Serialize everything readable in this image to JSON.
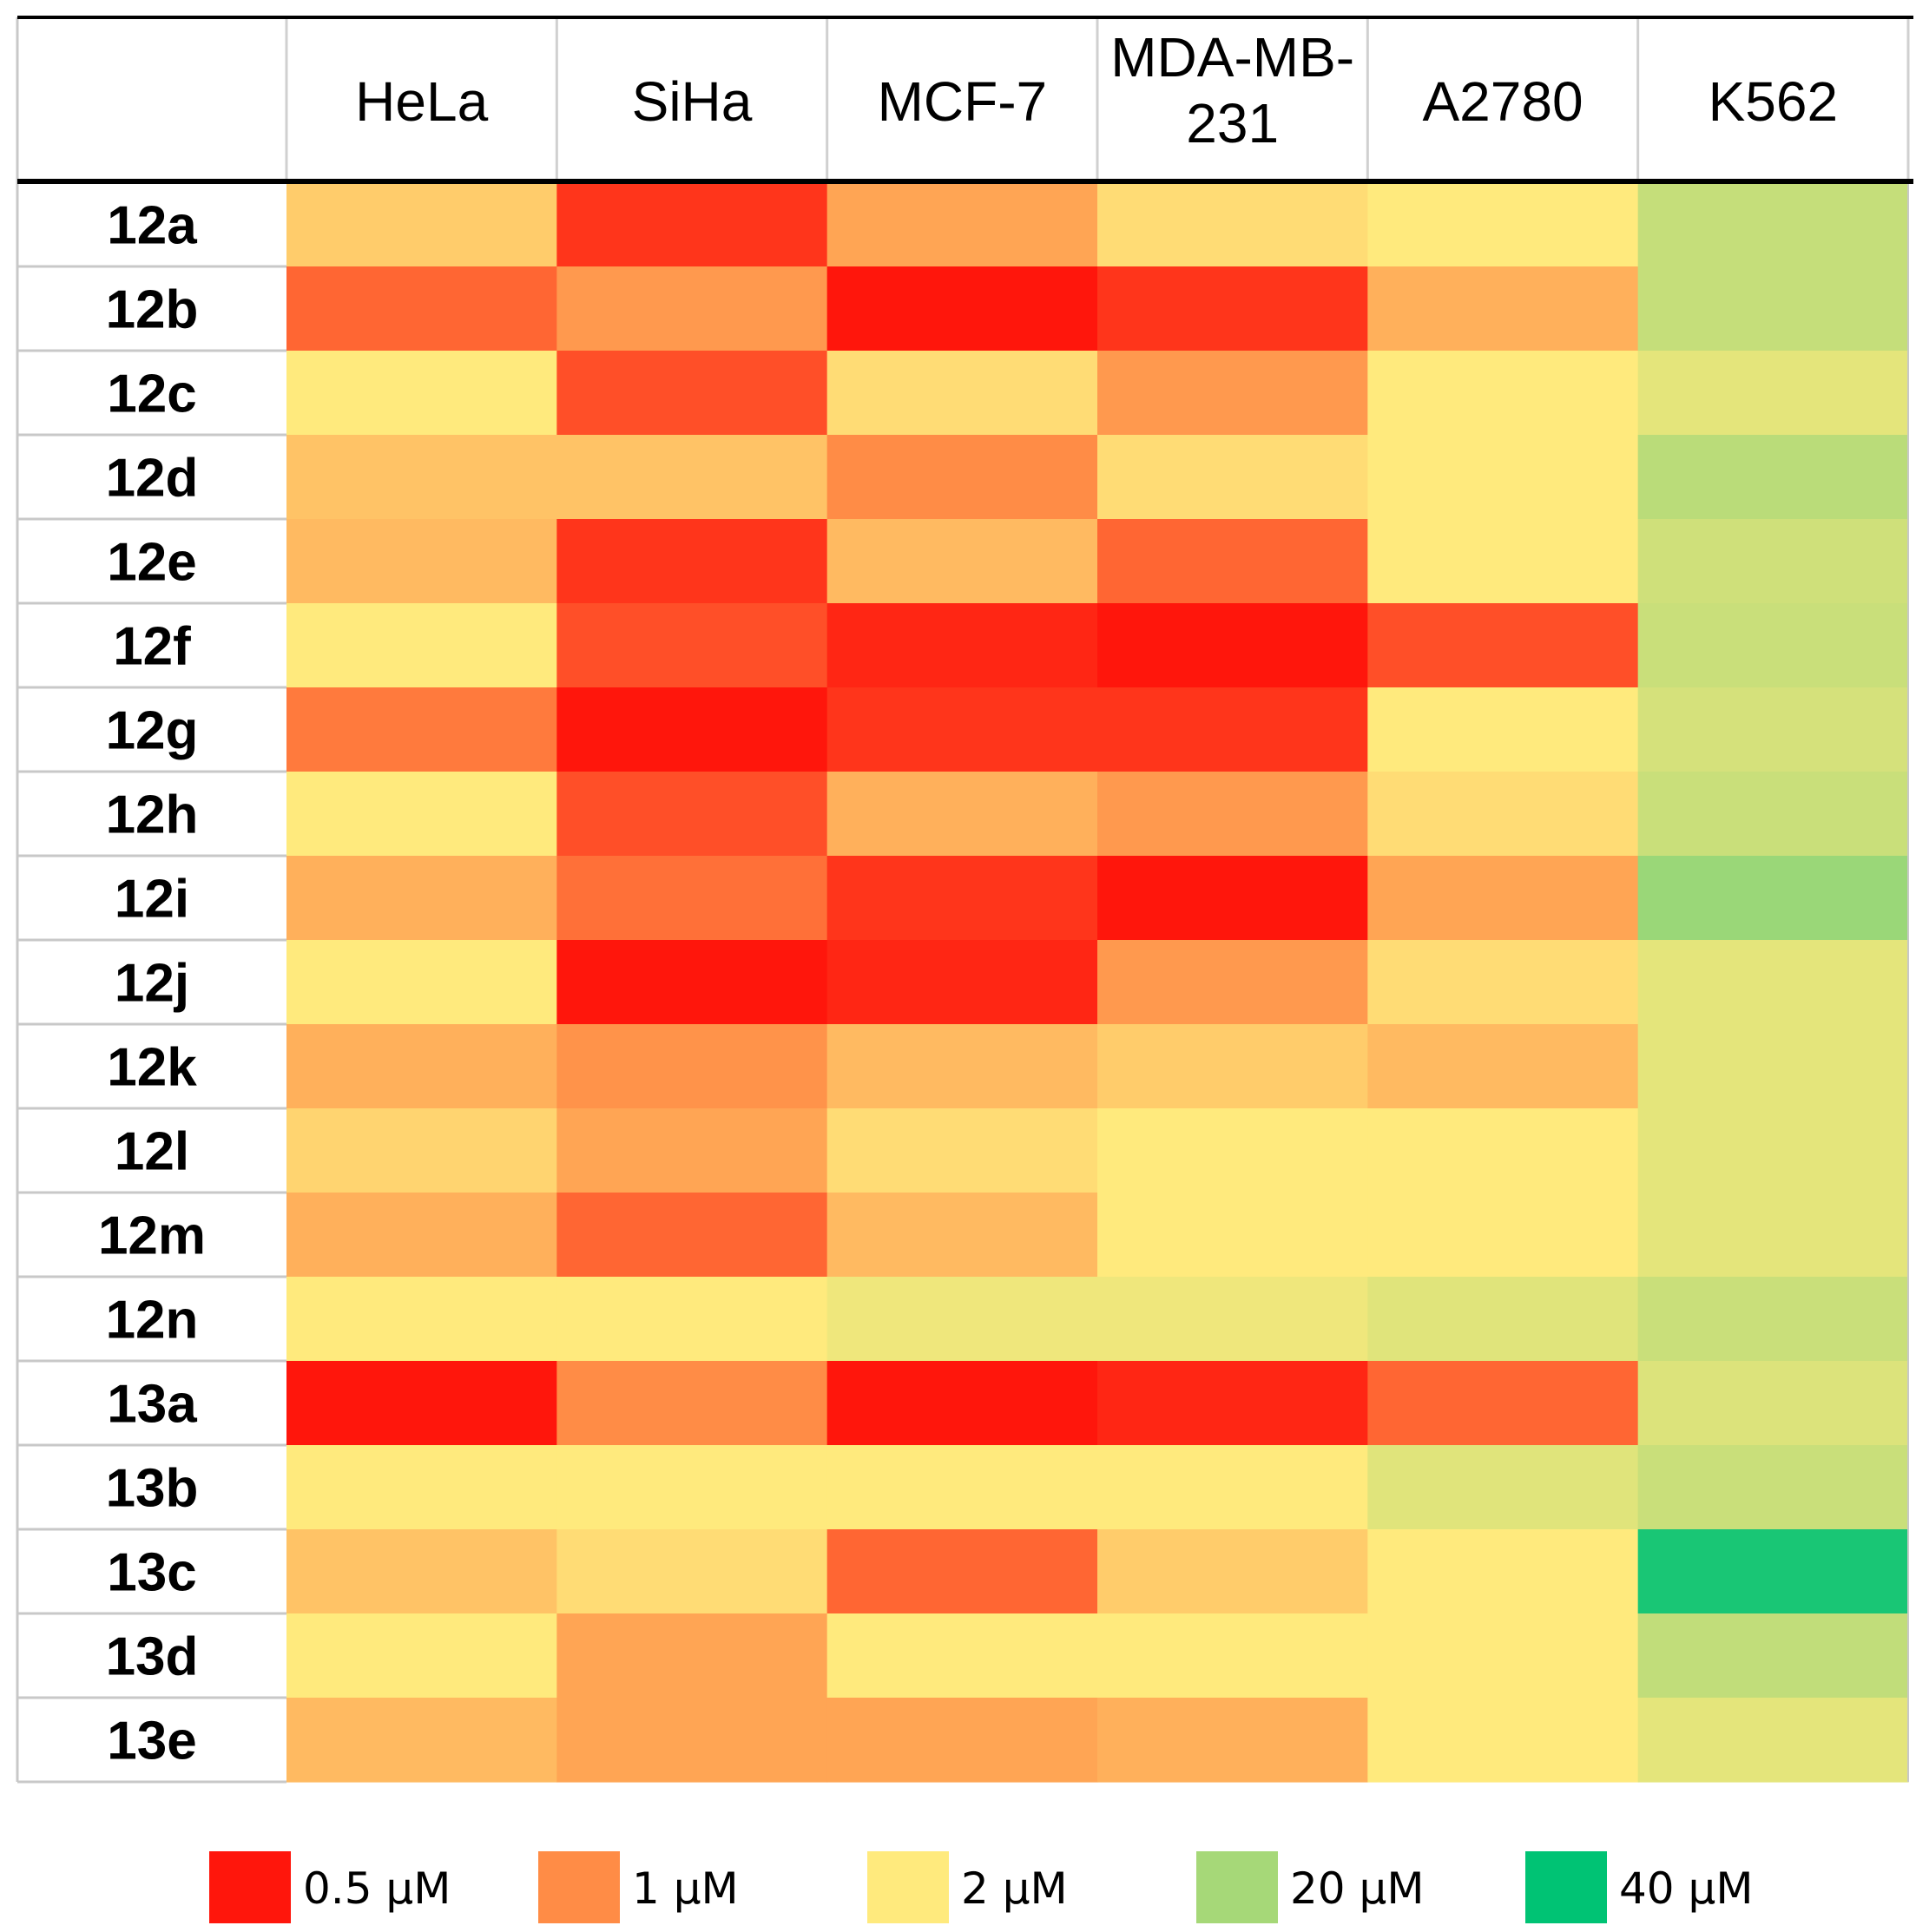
{
  "chart_data": {
    "type": "heatmap",
    "title": "",
    "columns": [
      "HeLa",
      "SiHa",
      "MCF-7",
      "MDA-MB-231",
      "A2780",
      "K562"
    ],
    "column_label_lines": [
      [
        "HeLa"
      ],
      [
        "SiHa"
      ],
      [
        "MCF-7"
      ],
      [
        "MDA-MB-",
        "231"
      ],
      [
        "A2780"
      ],
      [
        "K562"
      ]
    ],
    "rows": [
      "12a",
      "12b",
      "12c",
      "12d",
      "12e",
      "12f",
      "12g",
      "12h",
      "12i",
      "12j",
      "12k",
      "12l",
      "12m",
      "12n",
      "13a",
      "13b",
      "13c",
      "13d",
      "13e"
    ],
    "unit": "µM",
    "values": [
      [
        1.6,
        0.6,
        1.2,
        1.8,
        2.0,
        9.0
      ],
      [
        0.8,
        1.1,
        0.5,
        0.6,
        1.3,
        9.0
      ],
      [
        2.0,
        0.7,
        1.8,
        1.1,
        2.0,
        4.0
      ],
      [
        1.5,
        1.5,
        1.0,
        1.8,
        2.0,
        12.0
      ],
      [
        1.4,
        0.6,
        1.4,
        0.8,
        2.0,
        7.0
      ],
      [
        2.0,
        0.7,
        0.55,
        0.5,
        0.7,
        8.0
      ],
      [
        0.9,
        0.5,
        0.6,
        0.6,
        2.0,
        6.0
      ],
      [
        2.0,
        0.7,
        1.3,
        1.1,
        1.8,
        8.0
      ],
      [
        1.3,
        0.85,
        0.6,
        0.5,
        1.2,
        21.0
      ],
      [
        2.0,
        0.45,
        0.55,
        1.1,
        1.8,
        4.0
      ],
      [
        1.3,
        1.05,
        1.4,
        1.6,
        1.4,
        4.0
      ],
      [
        1.7,
        1.2,
        1.8,
        2.0,
        2.0,
        4.0
      ],
      [
        1.3,
        0.8,
        1.4,
        2.0,
        2.0,
        4.0
      ],
      [
        2.0,
        2.0,
        3.0,
        3.0,
        4.5,
        8.0
      ],
      [
        0.45,
        1.0,
        0.5,
        0.55,
        0.8,
        5.0
      ],
      [
        2.0,
        2.0,
        2.0,
        2.0,
        4.5,
        8.0
      ],
      [
        1.5,
        1.8,
        0.8,
        1.6,
        2.0,
        36.0
      ],
      [
        2.0,
        1.2,
        2.0,
        2.0,
        2.0,
        10.0
      ],
      [
        1.4,
        1.2,
        1.2,
        1.3,
        2.0,
        4.0
      ]
    ],
    "legend": [
      {
        "value": 0.5,
        "label": "0.5 µM",
        "color": "#ff160c"
      },
      {
        "value": 1,
        "label": "1 µM",
        "color": "#ff8c46"
      },
      {
        "value": 2,
        "label": "2 µM",
        "color": "#ffea7d"
      },
      {
        "value": 20,
        "label": "20 µM",
        "color": "#a6d878"
      },
      {
        "value": 40,
        "label": "40 µM",
        "color": "#00c374"
      }
    ]
  }
}
